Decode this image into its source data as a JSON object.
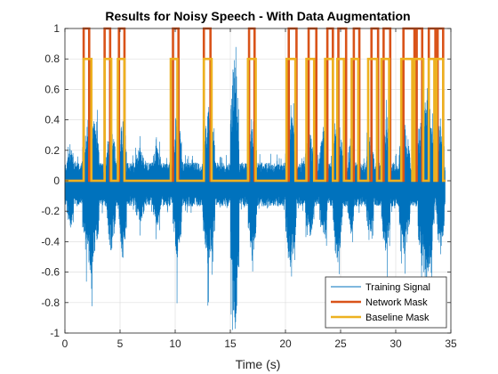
{
  "chart_data": {
    "type": "line",
    "title": "Results for Noisy Speech - With Data Augmentation",
    "xlabel": "Time (s)",
    "ylabel": "",
    "xlim": [
      0,
      35
    ],
    "ylim": [
      -1,
      1
    ],
    "xticks": [
      0,
      5,
      10,
      15,
      20,
      25,
      30,
      35
    ],
    "xtick_labels": [
      "0",
      "5",
      "10",
      "15",
      "20",
      "25",
      "30",
      "35"
    ],
    "yticks": [
      -1,
      -0.8,
      -0.6,
      -0.4,
      -0.2,
      0,
      0.2,
      0.4,
      0.6,
      0.8,
      1
    ],
    "ytick_labels": [
      "-1",
      "-0.8",
      "-0.6",
      "-0.4",
      "-0.2",
      "0",
      "0.2",
      "0.4",
      "0.6",
      "0.8",
      "1"
    ],
    "grid": true,
    "legend_position": "bottom-right",
    "series": [
      {
        "name": "Training Signal",
        "color": "#0072BD",
        "kind": "waveform",
        "noise_floor": 0.12,
        "bursts": [
          {
            "start": 0.2,
            "end": 0.8,
            "peak": 0.25
          },
          {
            "start": 1.6,
            "end": 3.1,
            "peak": 0.52
          },
          {
            "start": 3.8,
            "end": 4.6,
            "peak": 0.4
          },
          {
            "start": 4.9,
            "end": 5.6,
            "peak": 0.46
          },
          {
            "start": 6.4,
            "end": 7.2,
            "peak": 0.22
          },
          {
            "start": 8.0,
            "end": 8.7,
            "peak": 0.24
          },
          {
            "start": 9.8,
            "end": 10.6,
            "peak": 0.47
          },
          {
            "start": 12.5,
            "end": 13.6,
            "peak": 0.5
          },
          {
            "start": 15.0,
            "end": 15.8,
            "peak": 0.95
          },
          {
            "start": 16.6,
            "end": 17.4,
            "peak": 0.45
          },
          {
            "start": 20.0,
            "end": 21.0,
            "peak": 0.5
          },
          {
            "start": 21.8,
            "end": 22.6,
            "peak": 0.33
          },
          {
            "start": 23.1,
            "end": 23.8,
            "peak": 0.36
          },
          {
            "start": 24.3,
            "end": 25.2,
            "peak": 0.45
          },
          {
            "start": 25.7,
            "end": 26.2,
            "peak": 0.32
          },
          {
            "start": 27.3,
            "end": 28.0,
            "peak": 0.3
          },
          {
            "start": 28.7,
            "end": 29.5,
            "peak": 0.42
          },
          {
            "start": 30.3,
            "end": 31.3,
            "peak": 0.4
          },
          {
            "start": 32.0,
            "end": 33.5,
            "peak": 0.6
          },
          {
            "start": 33.7,
            "end": 34.4,
            "peak": 0.45
          }
        ]
      },
      {
        "name": "Network Mask",
        "color": "#D95319",
        "level": 1,
        "segments": [
          [
            1.7,
            2.2
          ],
          [
            3.6,
            4.1
          ],
          [
            4.9,
            5.4
          ],
          [
            9.8,
            10.3
          ],
          [
            12.6,
            13.2
          ],
          [
            16.7,
            17.2
          ],
          [
            20.3,
            21.0
          ],
          [
            22.1,
            22.8
          ],
          [
            23.8,
            24.3
          ],
          [
            24.8,
            25.5
          ],
          [
            26.2,
            26.7
          ],
          [
            27.8,
            28.4
          ],
          [
            28.9,
            29.5
          ],
          [
            30.7,
            31.7
          ],
          [
            31.9,
            32.4
          ],
          [
            33.0,
            33.6
          ],
          [
            33.8,
            34.3
          ]
        ]
      },
      {
        "name": "Baseline Mask",
        "color": "#EDB120",
        "level": 0.8,
        "segments": [
          [
            1.7,
            2.4
          ],
          [
            3.6,
            4.2
          ],
          [
            4.8,
            5.4
          ],
          [
            9.6,
            10.2
          ],
          [
            12.6,
            13.3
          ],
          [
            16.6,
            17.3
          ],
          [
            20.1,
            20.9
          ],
          [
            21.9,
            22.6
          ],
          [
            23.6,
            24.3
          ],
          [
            24.7,
            25.3
          ],
          [
            26.0,
            26.6
          ],
          [
            27.5,
            28.3
          ],
          [
            28.7,
            29.4
          ],
          [
            30.5,
            31.5
          ],
          [
            31.7,
            32.5
          ],
          [
            33.0,
            33.5
          ],
          [
            33.7,
            34.3
          ]
        ]
      }
    ]
  }
}
